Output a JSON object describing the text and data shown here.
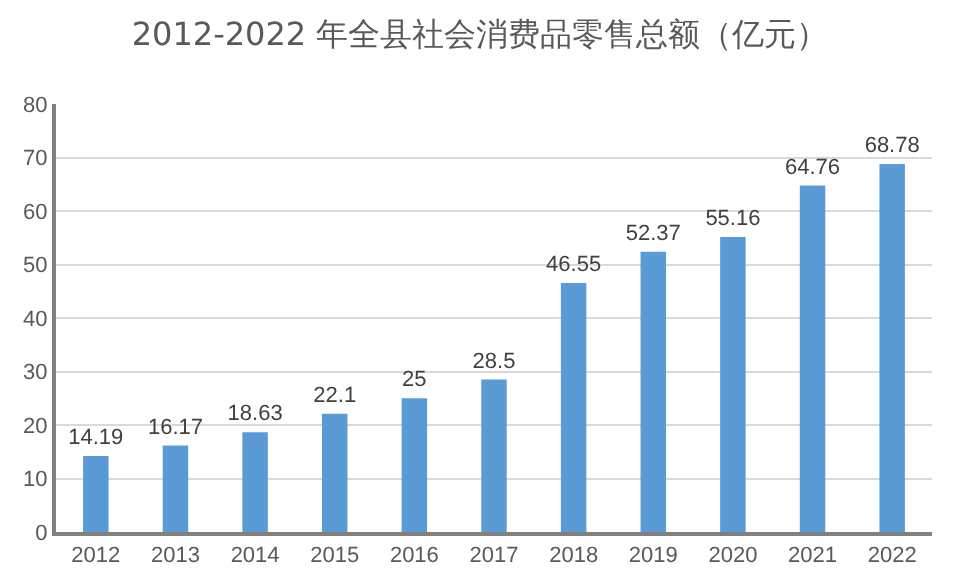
{
  "chart_data": {
    "type": "bar",
    "title": "2012-2022 年全县社会消费品零售总额（亿元）",
    "categories": [
      "2012",
      "2013",
      "2014",
      "2015",
      "2016",
      "2017",
      "2018",
      "2019",
      "2020",
      "2021",
      "2022"
    ],
    "values": [
      14.19,
      16.17,
      18.63,
      22.1,
      25,
      28.5,
      46.55,
      52.37,
      55.16,
      64.76,
      68.78
    ],
    "color": "#5b9bd5",
    "ylim": [
      0,
      80
    ],
    "yticks": [
      0,
      10,
      20,
      30,
      40,
      50,
      60,
      70,
      80
    ],
    "grid": "y",
    "data_labels": true,
    "legend": false
  }
}
